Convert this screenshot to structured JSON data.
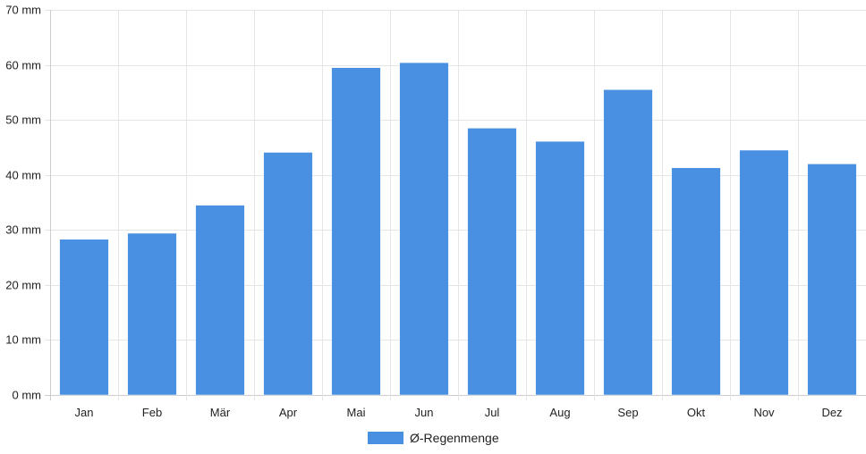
{
  "chart_data": {
    "type": "bar",
    "title": "",
    "xlabel": "",
    "ylabel": "",
    "categories": [
      "Jan",
      "Feb",
      "Mär",
      "Apr",
      "Mai",
      "Jun",
      "Jul",
      "Aug",
      "Sep",
      "Okt",
      "Nov",
      "Dez"
    ],
    "series": [
      {
        "name": "Ø-Regenmenge",
        "color": "#4a90e2",
        "values": [
          28.3,
          29.4,
          34.5,
          44.1,
          59.5,
          60.4,
          48.5,
          46.1,
          55.5,
          41.3,
          44.5,
          42.0
        ]
      }
    ],
    "ylim": [
      0,
      70
    ],
    "yticks": [
      0,
      10,
      20,
      30,
      40,
      50,
      60,
      70
    ],
    "ytick_labels": [
      "0 mm",
      "10 mm",
      "20 mm",
      "30 mm",
      "40 mm",
      "50 mm",
      "60 mm",
      "70 mm"
    ],
    "grid": true,
    "legend_position": "bottom-center",
    "legend_label": "Ø-Regenmenge"
  }
}
